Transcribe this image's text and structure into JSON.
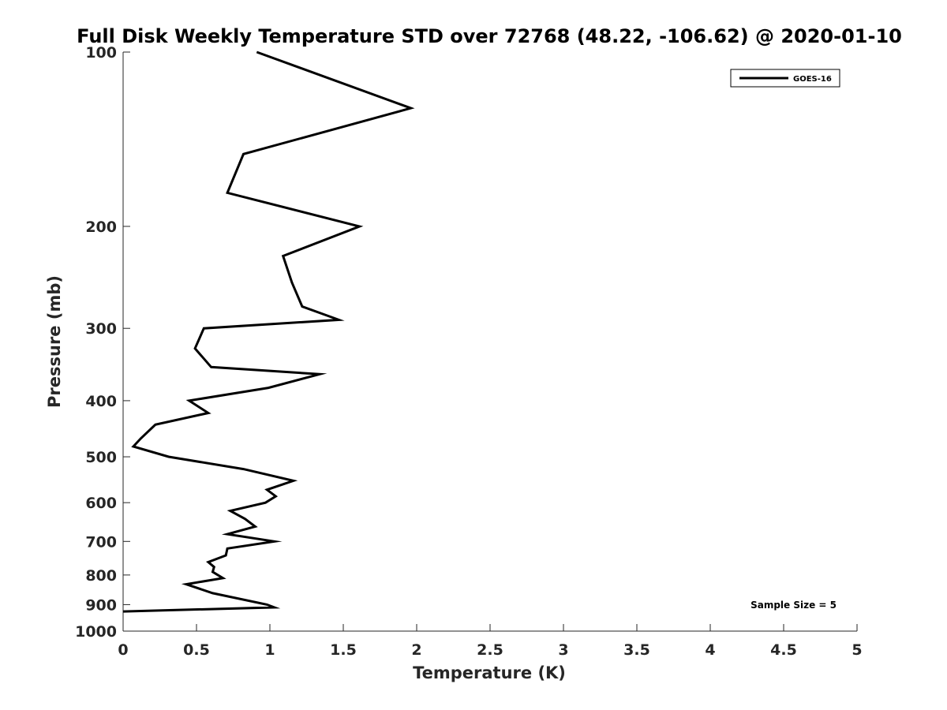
{
  "chart_data": {
    "type": "line",
    "title": "Full Disk Weekly Temperature STD over 72768 (48.22, -106.62) @ 2020-01-10",
    "xlabel": "Temperature (K)",
    "ylabel": "Pressure (mb)",
    "xlim": [
      0,
      5
    ],
    "ylim": [
      100,
      1000
    ],
    "y_scale": "log",
    "y_reversed": true,
    "x_ticks": [
      "0",
      "0.5",
      "1",
      "1.5",
      "2",
      "2.5",
      "3",
      "3.5",
      "4",
      "4.5",
      "5"
    ],
    "y_ticks": [
      "100",
      "200",
      "300",
      "400",
      "500",
      "600",
      "700",
      "800",
      "900",
      "1000"
    ],
    "grid": false,
    "legend": {
      "position": "top-right",
      "entries": [
        "GOES-16"
      ]
    },
    "annotation": "Sample Size = 5",
    "series": [
      {
        "name": "GOES-16",
        "color": "#000000",
        "points": [
          [
            0.91,
            100
          ],
          [
            1.96,
            125
          ],
          [
            0.82,
            150
          ],
          [
            0.71,
            175
          ],
          [
            1.61,
            200
          ],
          [
            1.09,
            225
          ],
          [
            1.15,
            250
          ],
          [
            1.22,
            275
          ],
          [
            1.47,
            290
          ],
          [
            0.55,
            300
          ],
          [
            0.49,
            325
          ],
          [
            0.6,
            350
          ],
          [
            1.34,
            360
          ],
          [
            0.99,
            380
          ],
          [
            0.45,
            400
          ],
          [
            0.58,
            420
          ],
          [
            0.22,
            440
          ],
          [
            0.12,
            465
          ],
          [
            0.07,
            480
          ],
          [
            0.31,
            500
          ],
          [
            0.82,
            525
          ],
          [
            1.16,
            550
          ],
          [
            0.98,
            570
          ],
          [
            1.04,
            585
          ],
          [
            0.97,
            600
          ],
          [
            0.73,
            620
          ],
          [
            0.83,
            640
          ],
          [
            0.9,
            660
          ],
          [
            0.71,
            680
          ],
          [
            1.03,
            700
          ],
          [
            0.71,
            720
          ],
          [
            0.7,
            740
          ],
          [
            0.58,
            760
          ],
          [
            0.62,
            775
          ],
          [
            0.61,
            790
          ],
          [
            0.68,
            810
          ],
          [
            0.43,
            830
          ],
          [
            0.61,
            860
          ],
          [
            0.98,
            900
          ],
          [
            1.03,
            910
          ],
          [
            0.0,
            925
          ]
        ]
      }
    ]
  }
}
